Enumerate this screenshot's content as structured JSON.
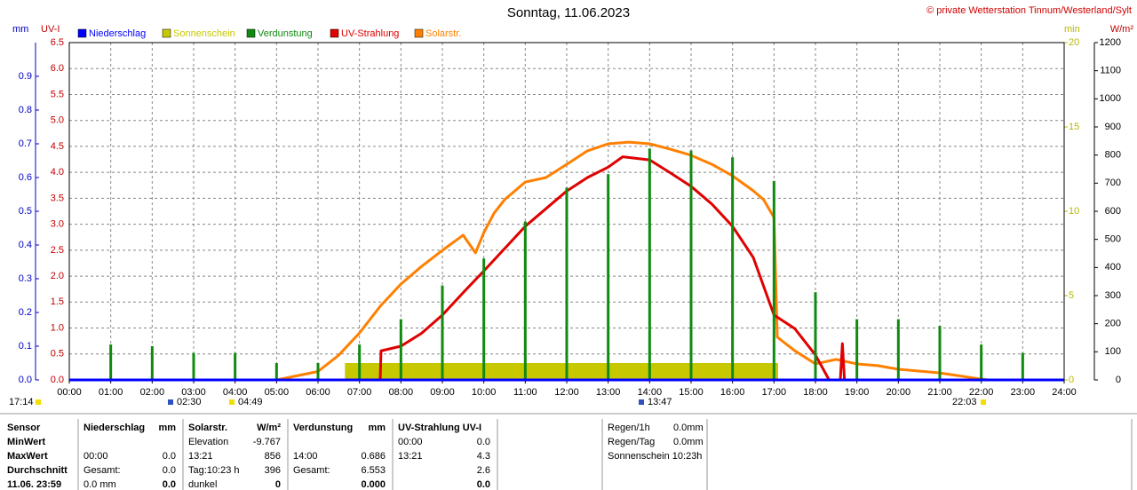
{
  "chart_data": {
    "type": "line",
    "title": "Sonntag, 11.06.2023",
    "copyright": "© private Wetterstation Tinnum/Westerland/Sylt",
    "y_label": "UV-I",
    "y2_label": "W/m²",
    "y3_label": "mm",
    "y4_label": "min",
    "xlim": [
      0,
      24
    ],
    "xticks": [
      {
        "value": 0,
        "label": "00:00"
      },
      {
        "value": 1,
        "label": "01:00"
      },
      {
        "value": 2,
        "label": "02:00"
      },
      {
        "value": 3,
        "label": "03:00"
      },
      {
        "value": 4,
        "label": "04:00"
      },
      {
        "value": 5,
        "label": "05:00"
      },
      {
        "value": 6,
        "label": "06:00"
      },
      {
        "value": 7,
        "label": "07:00"
      },
      {
        "value": 8,
        "label": "08:00"
      },
      {
        "value": 9,
        "label": "09:00"
      },
      {
        "value": 10,
        "label": "10:00"
      },
      {
        "value": 11,
        "label": "11:00"
      },
      {
        "value": 12,
        "label": "12:00"
      },
      {
        "value": 13,
        "label": "13:00"
      },
      {
        "value": 14,
        "label": "14:00"
      },
      {
        "value": 15,
        "label": "15:00"
      },
      {
        "value": 16,
        "label": "16:00"
      },
      {
        "value": 17,
        "label": "17:00"
      },
      {
        "value": 18,
        "label": "18:00"
      },
      {
        "value": 19,
        "label": "19:00"
      },
      {
        "value": 20,
        "label": "20:00"
      },
      {
        "value": 21,
        "label": "21:00"
      },
      {
        "value": 22,
        "label": "22:00"
      },
      {
        "value": 23,
        "label": "23:00"
      },
      {
        "value": 24,
        "label": "24:00"
      }
    ],
    "ylim": [
      0,
      6.5
    ],
    "yticks": [
      {
        "value": 0,
        "label": "0.0"
      },
      0.5,
      {
        "value": 1,
        "label": "1.0"
      },
      1.5,
      {
        "value": 2,
        "label": "2.0"
      },
      2.5,
      {
        "value": 3,
        "label": "3.0"
      },
      3.5,
      {
        "value": 4,
        "label": "4.0"
      },
      4.5,
      {
        "value": 5,
        "label": "5.0"
      },
      5.5,
      {
        "value": 6,
        "label": "6.0"
      },
      6.5
    ],
    "y2lim": [
      0,
      1200
    ],
    "y2ticks": [
      0,
      100,
      200,
      300,
      400,
      500,
      600,
      700,
      800,
      900,
      1000,
      1100,
      1200
    ],
    "y3lim": [
      0,
      1.0
    ],
    "y3ticks": [
      {
        "value": 0,
        "label": "0.0"
      },
      0.1,
      0.2,
      0.3,
      0.4,
      0.5,
      0.6,
      0.7,
      0.8,
      0.9
    ],
    "y4lim": [
      0,
      20
    ],
    "y4ticks": [
      0,
      5,
      10,
      15,
      20
    ],
    "grid": true,
    "series": [
      {
        "name": "Niederschlag",
        "type": "line",
        "axis": "y3",
        "color": "#0000ff",
        "x": [
          0,
          24
        ],
        "values": [
          0,
          0
        ]
      },
      {
        "name": "Sonnenschein",
        "type": "area",
        "axis": "y4",
        "color": "#c8c800",
        "x": [
          6.65,
          17.1
        ],
        "values": [
          1,
          1
        ]
      },
      {
        "name": "Verdunstung",
        "type": "bar",
        "axis": "y3",
        "color": "#108a10",
        "x": [
          1,
          2,
          3,
          4,
          5,
          6,
          7,
          8,
          9,
          10,
          11,
          12,
          13,
          14,
          15,
          16,
          17,
          18,
          19,
          20,
          21,
          22,
          23
        ],
        "values": [
          0.105,
          0.1,
          0.08,
          0.08,
          0.05,
          0.05,
          0.105,
          0.18,
          0.28,
          0.36,
          0.47,
          0.57,
          0.61,
          0.686,
          0.68,
          0.66,
          0.59,
          0.26,
          0.18,
          0.18,
          0.16,
          0.105,
          0.08
        ]
      },
      {
        "name": "UV-Strahlung",
        "type": "line",
        "axis": "y",
        "color": "#e00000",
        "x": [
          0,
          7.5,
          7.52,
          8,
          8.5,
          9,
          9.5,
          10,
          10.5,
          11,
          11.5,
          12,
          12.5,
          13,
          13.35,
          14,
          14.5,
          15,
          15.5,
          16,
          16.5,
          17,
          17.5,
          18,
          18.33,
          18.6,
          18.65,
          18.7,
          19,
          24
        ],
        "values": [
          0,
          0,
          0.56,
          0.65,
          0.9,
          1.25,
          1.68,
          2.1,
          2.53,
          2.96,
          3.3,
          3.64,
          3.9,
          4.1,
          4.3,
          4.24,
          3.99,
          3.73,
          3.39,
          2.96,
          2.36,
          1.25,
          0.99,
          0.48,
          0,
          0,
          0.7,
          0,
          0,
          0
        ]
      },
      {
        "name": "Solarstr.",
        "type": "line",
        "axis": "y2",
        "color": "#ff8000",
        "x": [
          0,
          5,
          6,
          6.5,
          7,
          7.5,
          8,
          8.5,
          9,
          9.5,
          9.8,
          10,
          10.25,
          10.5,
          11,
          11.5,
          12,
          12.5,
          13,
          13.5,
          14,
          14.5,
          15,
          15.5,
          16,
          16.5,
          16.75,
          17,
          17.08,
          17.5,
          18,
          18.5,
          19,
          19.5,
          20,
          21,
          22,
          22.17,
          24
        ],
        "values": [
          0,
          0,
          30,
          88,
          167,
          262,
          341,
          404,
          461,
          515,
          452,
          524,
          594,
          641,
          704,
          720,
          767,
          815,
          840,
          846,
          840,
          821,
          799,
          767,
          726,
          673,
          641,
          578,
          152,
          104,
          57,
          73,
          57,
          51,
          38,
          25,
          3,
          0,
          0
        ]
      }
    ]
  },
  "markers": [
    "17:14",
    "02:30",
    "04:49",
    "13:47",
    "22:03"
  ],
  "table": {
    "rows": [
      [
        "Sensor",
        "Niederschlag",
        "mm",
        "Solarstr.",
        "W/m²",
        "Verdunstung",
        "mm",
        "UV-Strahlung UV-I",
        null
      ],
      [
        "MinWert",
        null,
        null,
        "Elevation",
        "-9.767",
        null,
        null,
        "00:00",
        "0.0"
      ],
      [
        "MaxWert",
        "00:00",
        "0.0",
        "13:21",
        "856",
        "14:00",
        "0.686",
        "13:21",
        "4.3"
      ],
      [
        "Durchschnitt",
        "Gesamt:",
        "0.0",
        "Tag:10:23 h",
        "396",
        "Gesamt:",
        "6.553",
        null,
        "2.6"
      ],
      [
        "11.06. 23:59",
        "0.0 mm",
        "0.0",
        "dunkel",
        "0",
        null,
        "0.000",
        null,
        "0.0"
      ]
    ],
    "summary": [
      [
        "Regen/1h",
        "0.0mm"
      ],
      [
        "Regen/Tag",
        "0.0mm"
      ],
      [
        "Sonnenschein 10:23h",
        null
      ]
    ]
  }
}
